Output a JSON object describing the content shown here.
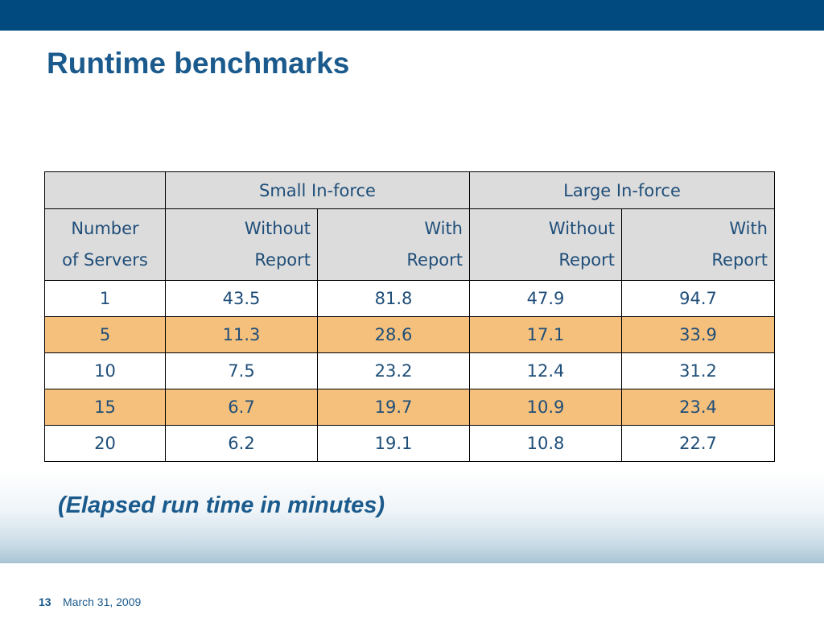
{
  "slide": {
    "title": "Runtime benchmarks",
    "note": "(Elapsed run time in minutes)",
    "page_number": "13",
    "date": "March 31, 2009"
  },
  "colors": {
    "header_bar": "#004a7f",
    "title_text": "#1b5a8c",
    "table_text": "#1f4e79",
    "header_fill": "#dcdcdc",
    "alt_row_fill": "#f5c07c"
  },
  "table": {
    "group_headers": [
      "Small In-force",
      "Large In-force"
    ],
    "row_header": [
      "Number",
      "of Servers"
    ],
    "sub_headers": [
      [
        "Without",
        "Report"
      ],
      [
        "With",
        "Report"
      ],
      [
        "Without",
        "Report"
      ],
      [
        "With",
        "Report"
      ]
    ],
    "rows": [
      [
        "1",
        "43.5",
        "81.8",
        "47.9",
        "94.7"
      ],
      [
        "5",
        "11.3",
        "28.6",
        "17.1",
        "33.9"
      ],
      [
        "10",
        "7.5",
        "23.2",
        "12.4",
        "31.2"
      ],
      [
        "15",
        "6.7",
        "19.7",
        "10.9",
        "23.4"
      ],
      [
        "20",
        "6.2",
        "19.1",
        "10.8",
        "22.7"
      ]
    ]
  }
}
